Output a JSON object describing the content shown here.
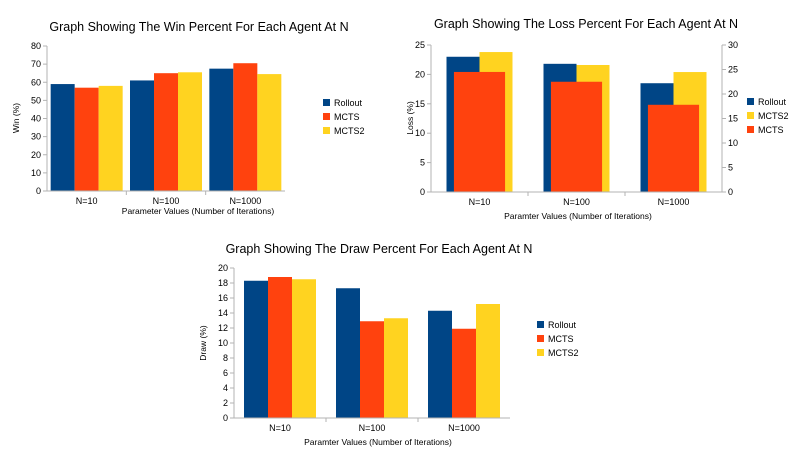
{
  "colors": {
    "rollout": "#004586",
    "mcts": "#ff420e",
    "mcts2": "#ffd320"
  },
  "chart_data": [
    {
      "type": "bar",
      "title": "Graph Showing The Win Percent For Each Agent At N",
      "xlabel": "Parameter Values (Number of Iterations)",
      "ylabel": "Win (%)",
      "ylim": [
        0,
        80
      ],
      "yticks": [
        "0",
        "10",
        "20",
        "30",
        "40",
        "50",
        "60",
        "70",
        "80"
      ],
      "categories": [
        "N=10",
        "N=100",
        "N=1000"
      ],
      "grid": false,
      "legend_position": "right",
      "legend": [
        "Rollout",
        "MCTS",
        "MCTS2"
      ],
      "series": [
        {
          "name": "Rollout",
          "color": "#004586",
          "values": [
            59,
            61,
            67.5
          ]
        },
        {
          "name": "MCTS",
          "color": "#ff420e",
          "values": [
            57,
            65,
            70.5
          ]
        },
        {
          "name": "MCTS2",
          "color": "#ffd320",
          "values": [
            58,
            65.5,
            64.5
          ]
        }
      ]
    },
    {
      "type": "bar",
      "title": "Graph Showing The Loss Percent For Each Agent At N",
      "xlabel": "Paramter Values (Number of Iterations)",
      "ylabel": "Loss (%)",
      "ylim": [
        0,
        25
      ],
      "yticks": [
        "0",
        "5",
        "10",
        "15",
        "20",
        "25"
      ],
      "y2lim": [
        0,
        30
      ],
      "y2ticks": [
        "0",
        "5",
        "10",
        "15",
        "20",
        "25",
        "30"
      ],
      "categories": [
        "N=10",
        "N=100",
        "N=1000"
      ],
      "grid": false,
      "legend_position": "right",
      "legend": [
        "Rollout",
        "MCTS2",
        "MCTS"
      ],
      "series": [
        {
          "name": "Rollout",
          "color": "#004586",
          "axis": "primary",
          "values": [
            23,
            21.8,
            18.5
          ]
        },
        {
          "name": "MCTS2",
          "color": "#ffd320",
          "axis": "primary",
          "values": [
            23.8,
            21.6,
            20.4
          ]
        },
        {
          "name": "MCTS",
          "color": "#ff420e",
          "axis": "secondary",
          "values": [
            24.5,
            22.5,
            17.8
          ]
        }
      ]
    },
    {
      "type": "bar",
      "title": "Graph Showing The Draw Percent For Each Agent At N",
      "xlabel": "Paramter Values (Number of Iterations)",
      "ylabel": "Draw (%)",
      "ylim": [
        0,
        20
      ],
      "yticks": [
        "0",
        "2",
        "4",
        "6",
        "8",
        "10",
        "12",
        "14",
        "16",
        "18",
        "20"
      ],
      "categories": [
        "N=10",
        "N=100",
        "N=1000"
      ],
      "grid": false,
      "legend_position": "right",
      "legend": [
        "Rollout",
        "MCTS",
        "MCTS2"
      ],
      "series": [
        {
          "name": "Rollout",
          "color": "#004586",
          "values": [
            18.3,
            17.3,
            14.3
          ]
        },
        {
          "name": "MCTS",
          "color": "#ff420e",
          "values": [
            18.8,
            12.9,
            11.9
          ]
        },
        {
          "name": "MCTS2",
          "color": "#ffd320",
          "values": [
            18.5,
            13.3,
            15.2
          ]
        }
      ]
    }
  ]
}
